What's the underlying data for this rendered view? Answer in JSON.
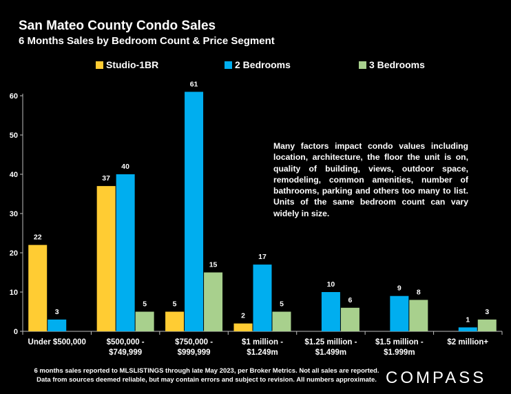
{
  "header": {
    "title": "San Mateo County Condo  Sales",
    "subtitle": "6 Months Sales by Bedroom Count & Price Segment"
  },
  "colors": {
    "background": "#000000",
    "studio": "#FFCC33",
    "two_bed": "#00AEEF",
    "three_bed": "#A8D08D",
    "axis": "#BFBFBF"
  },
  "chart_data": {
    "type": "bar",
    "categories": [
      [
        "Under $500,000"
      ],
      [
        "$500,000 -",
        "$749,999"
      ],
      [
        "$750,000 -",
        "$999,999"
      ],
      [
        "$1 million -",
        "$1.249m"
      ],
      [
        "$1.25 million -",
        "$1.499m"
      ],
      [
        "$1.5 million -",
        "$1.999m"
      ],
      [
        "$2 million+"
      ]
    ],
    "series": [
      {
        "name": "Studio-1BR",
        "color": "#FFCC33",
        "values": [
          22,
          37,
          5,
          2,
          null,
          null,
          null
        ]
      },
      {
        "name": "2 Bedrooms",
        "color": "#00AEEF",
        "values": [
          3,
          40,
          61,
          17,
          10,
          9,
          1
        ]
      },
      {
        "name": "3 Bedrooms",
        "color": "#A8D08D",
        "values": [
          null,
          5,
          15,
          5,
          6,
          8,
          3
        ]
      }
    ],
    "ylim": [
      0,
      60
    ],
    "yticks": [
      0,
      10,
      20,
      30,
      40,
      50,
      60
    ],
    "grid": false,
    "legend": "top",
    "data_labels": true
  },
  "note": "Many factors impact condo values including location, architecture, the floor the unit is on, quality of building, views, outdoor space, remodeling, common amenities, number of bathrooms, parking and others too many to list. Units of the same bedroom count can vary widely in size.",
  "footer": {
    "line1": "6 months sales reported to MLSLISTINGS through late May 2023, per Broker Metrics. Not all sales are reported.",
    "line2": "Data from sources deemed reliable, but may contain errors and subject to revision. All numbers approximate."
  },
  "brand": "COMPASS"
}
